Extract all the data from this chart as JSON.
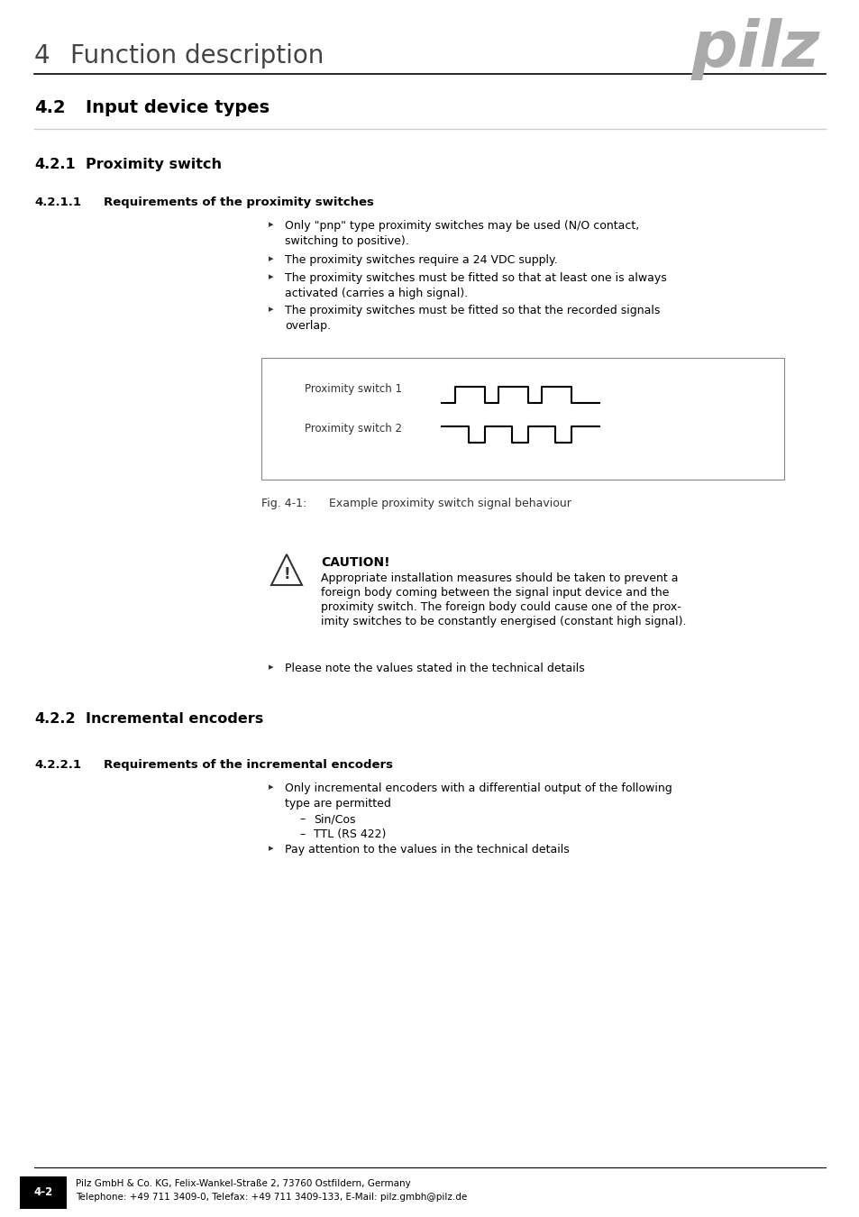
{
  "page_bg": "#ffffff",
  "header_chapter_num": "4",
  "header_chapter_title": "Function description",
  "header_logo_color": "#aaaaaa",
  "section_42_num": "4.2",
  "section_42_title": "Input device types",
  "section_421_num": "4.2.1",
  "section_421_title": "Proximity switch",
  "section_4211_num": "4.2.1.1",
  "section_4211_title": "Requirements of the proximity switches",
  "bullet_items_ps": [
    "Only \"pnp\" type proximity switches may be used (N/O contact,\nswitching to positive).",
    "The proximity switches require a 24 VDC supply.",
    "The proximity switches must be fitted so that at least one is always\nactivated (carries a high signal).",
    "The proximity switches must be fitted so that the recorded signals\noverlap."
  ],
  "fig_label": "Fig. 4-1:",
  "fig_caption": "Example proximity switch signal behaviour",
  "ps1_label": "Proximity switch 1",
  "ps2_label": "Proximity switch 2",
  "caution_title": "CAUTION!",
  "caution_text": "Appropriate installation measures should be taken to prevent a\nforeign body coming between the signal input device and the\nproximity switch. The foreign body could cause one of the prox-\nimity switches to be constantly energised (constant high signal).",
  "note_ps": "Please note the values stated in the technical details",
  "section_422_num": "4.2.2",
  "section_422_title": "Incremental encoders",
  "section_4221_num": "4.2.2.1",
  "section_4221_title": "Requirements of the incremental encoders",
  "bullet_items_ie_main": "Only incremental encoders with a differential output of the following\ntype are permitted",
  "bullet_items_ie_sub": [
    "Sin/Cos",
    "TTL (RS 422)"
  ],
  "bullet_items_ie_extra": "Pay attention to the values in the technical details",
  "footer_page_label": "4-2",
  "footer_company": "Pilz GmbH & Co. KG, Felix-Wankel-Straße 2, 73760 Ostfildern, Germany",
  "footer_contact": "Telephone: +49 711 3409-0, Telefax: +49 711 3409-133, E-Mail: pilz.gmbh@pilz.de"
}
